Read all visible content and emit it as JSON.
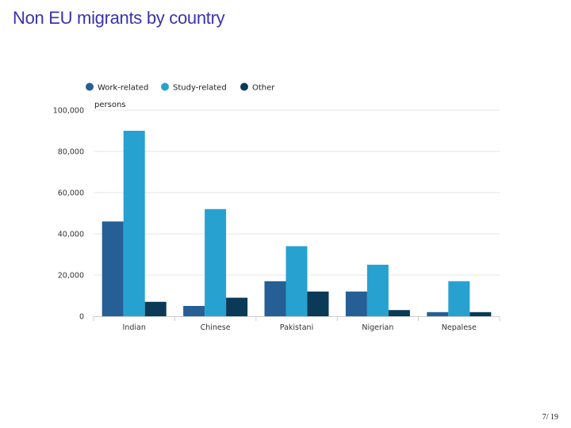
{
  "slide": {
    "title": "Non EU migrants by country",
    "page_number": "7",
    "page_total": "19"
  },
  "colors": {
    "work": "#255f95",
    "study": "#27a2d0",
    "other": "#0a3a57",
    "grid": "#e6e6e6",
    "axis": "#cccccc"
  },
  "chart_data": {
    "type": "bar",
    "title": "",
    "ylabel": "persons",
    "xlabel": "",
    "ylim": [
      0,
      100000
    ],
    "yticks": [
      0,
      20000,
      40000,
      60000,
      80000,
      100000
    ],
    "ytick_labels": [
      "0",
      "20,000",
      "40,000",
      "60,000",
      "80,000",
      "100,000"
    ],
    "categories": [
      "Indian",
      "Chinese",
      "Pakistani",
      "Nigerian",
      "Nepalese"
    ],
    "legend_position": "top-left",
    "series": [
      {
        "name": "Work-related",
        "color_key": "work",
        "values": [
          46000,
          5000,
          17000,
          12000,
          2000
        ]
      },
      {
        "name": "Study-related",
        "color_key": "study",
        "values": [
          90000,
          52000,
          34000,
          25000,
          17000
        ]
      },
      {
        "name": "Other",
        "color_key": "other",
        "values": [
          7000,
          9000,
          12000,
          3000,
          2000
        ]
      }
    ]
  }
}
